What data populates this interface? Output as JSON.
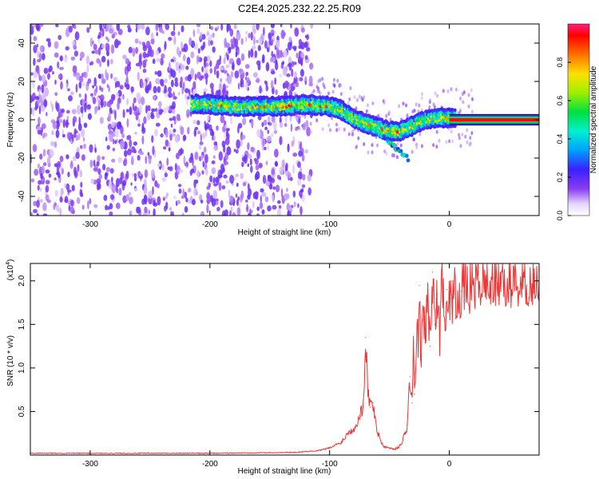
{
  "figure": {
    "title": "C2E4.2025.232.22.25.R09"
  },
  "chart_data": [
    {
      "type": "heatmap",
      "title": "C2E4.2025.232.22.25.R09",
      "xlabel": "Height of straight line (km)",
      "ylabel": "Frequency (Hz)",
      "xlim": [
        -350,
        75
      ],
      "ylim": [
        -50,
        50
      ],
      "xticks": [
        -300,
        -200,
        -100,
        0
      ],
      "yticks": [
        -40,
        -20,
        0,
        20,
        40
      ],
      "colorbar": {
        "label": "Normalized spectral amplitude",
        "range": [
          0,
          1
        ],
        "ticks": [
          0.0,
          0.2,
          0.4,
          0.6,
          0.8
        ],
        "colormap": "rainbow (white-purple-blue-cyan-green-yellow-red)"
      },
      "dominant_frequency_track": [
        {
          "x": -215,
          "y": 8
        },
        {
          "x": -200,
          "y": 8
        },
        {
          "x": -180,
          "y": 7
        },
        {
          "x": -160,
          "y": 7
        },
        {
          "x": -140,
          "y": 7
        },
        {
          "x": -120,
          "y": 8
        },
        {
          "x": -100,
          "y": 7
        },
        {
          "x": -90,
          "y": 5
        },
        {
          "x": -80,
          "y": 1
        },
        {
          "x": -70,
          "y": -2
        },
        {
          "x": -60,
          "y": -4
        },
        {
          "x": -50,
          "y": -6
        },
        {
          "x": -40,
          "y": -6
        },
        {
          "x": -30,
          "y": -3
        },
        {
          "x": -20,
          "y": 0
        },
        {
          "x": -10,
          "y": 1
        },
        {
          "x": 0,
          "y": 1
        },
        {
          "x": 75,
          "y": 0
        }
      ],
      "noise_region_x": [
        -350,
        -125
      ]
    },
    {
      "type": "line",
      "xlabel": "Height of straight line (km)",
      "ylabel": "SNR (10 * v/v)",
      "yscale_label": "(x10",
      "yscale_exponent": "4",
      "xlim": [
        -350,
        75
      ],
      "ylim": [
        0,
        2.2
      ],
      "xticks": [
        -300,
        -200,
        -100,
        0
      ],
      "yticks": [
        0.5,
        1.0,
        1.5,
        2.0
      ],
      "series": [
        {
          "name": "SNR",
          "color": "#ee3333",
          "x": [
            -350,
            -200,
            -130,
            -110,
            -100,
            -90,
            -85,
            -80,
            -75,
            -72,
            -70,
            -68,
            -66,
            -64,
            -62,
            -60,
            -55,
            -50,
            -45,
            -40,
            -35,
            -33,
            -31,
            -30,
            -29,
            -28,
            -27,
            -26,
            -25,
            -24,
            -22,
            -20,
            -18,
            -16,
            -14,
            -12,
            -10,
            -8,
            -6,
            -4,
            -2,
            0,
            2,
            5,
            10,
            15,
            20,
            30,
            40,
            50,
            60,
            75
          ],
          "values": [
            0.02,
            0.02,
            0.03,
            0.05,
            0.08,
            0.15,
            0.25,
            0.3,
            0.45,
            0.55,
            1.35,
            0.75,
            0.55,
            0.6,
            0.45,
            0.25,
            0.1,
            0.08,
            0.07,
            0.12,
            0.35,
            0.9,
            0.6,
            1.3,
            0.7,
            1.0,
            1.5,
            1.2,
            1.95,
            1.1,
            1.55,
            1.45,
            1.8,
            1.25,
            2.1,
            1.5,
            1.85,
            1.35,
            2.2,
            1.55,
            1.9,
            1.75,
            1.8,
            1.85,
            1.88,
            1.92,
            1.95,
            1.97,
            1.97,
            1.98,
            1.97,
            1.97
          ]
        }
      ]
    }
  ]
}
